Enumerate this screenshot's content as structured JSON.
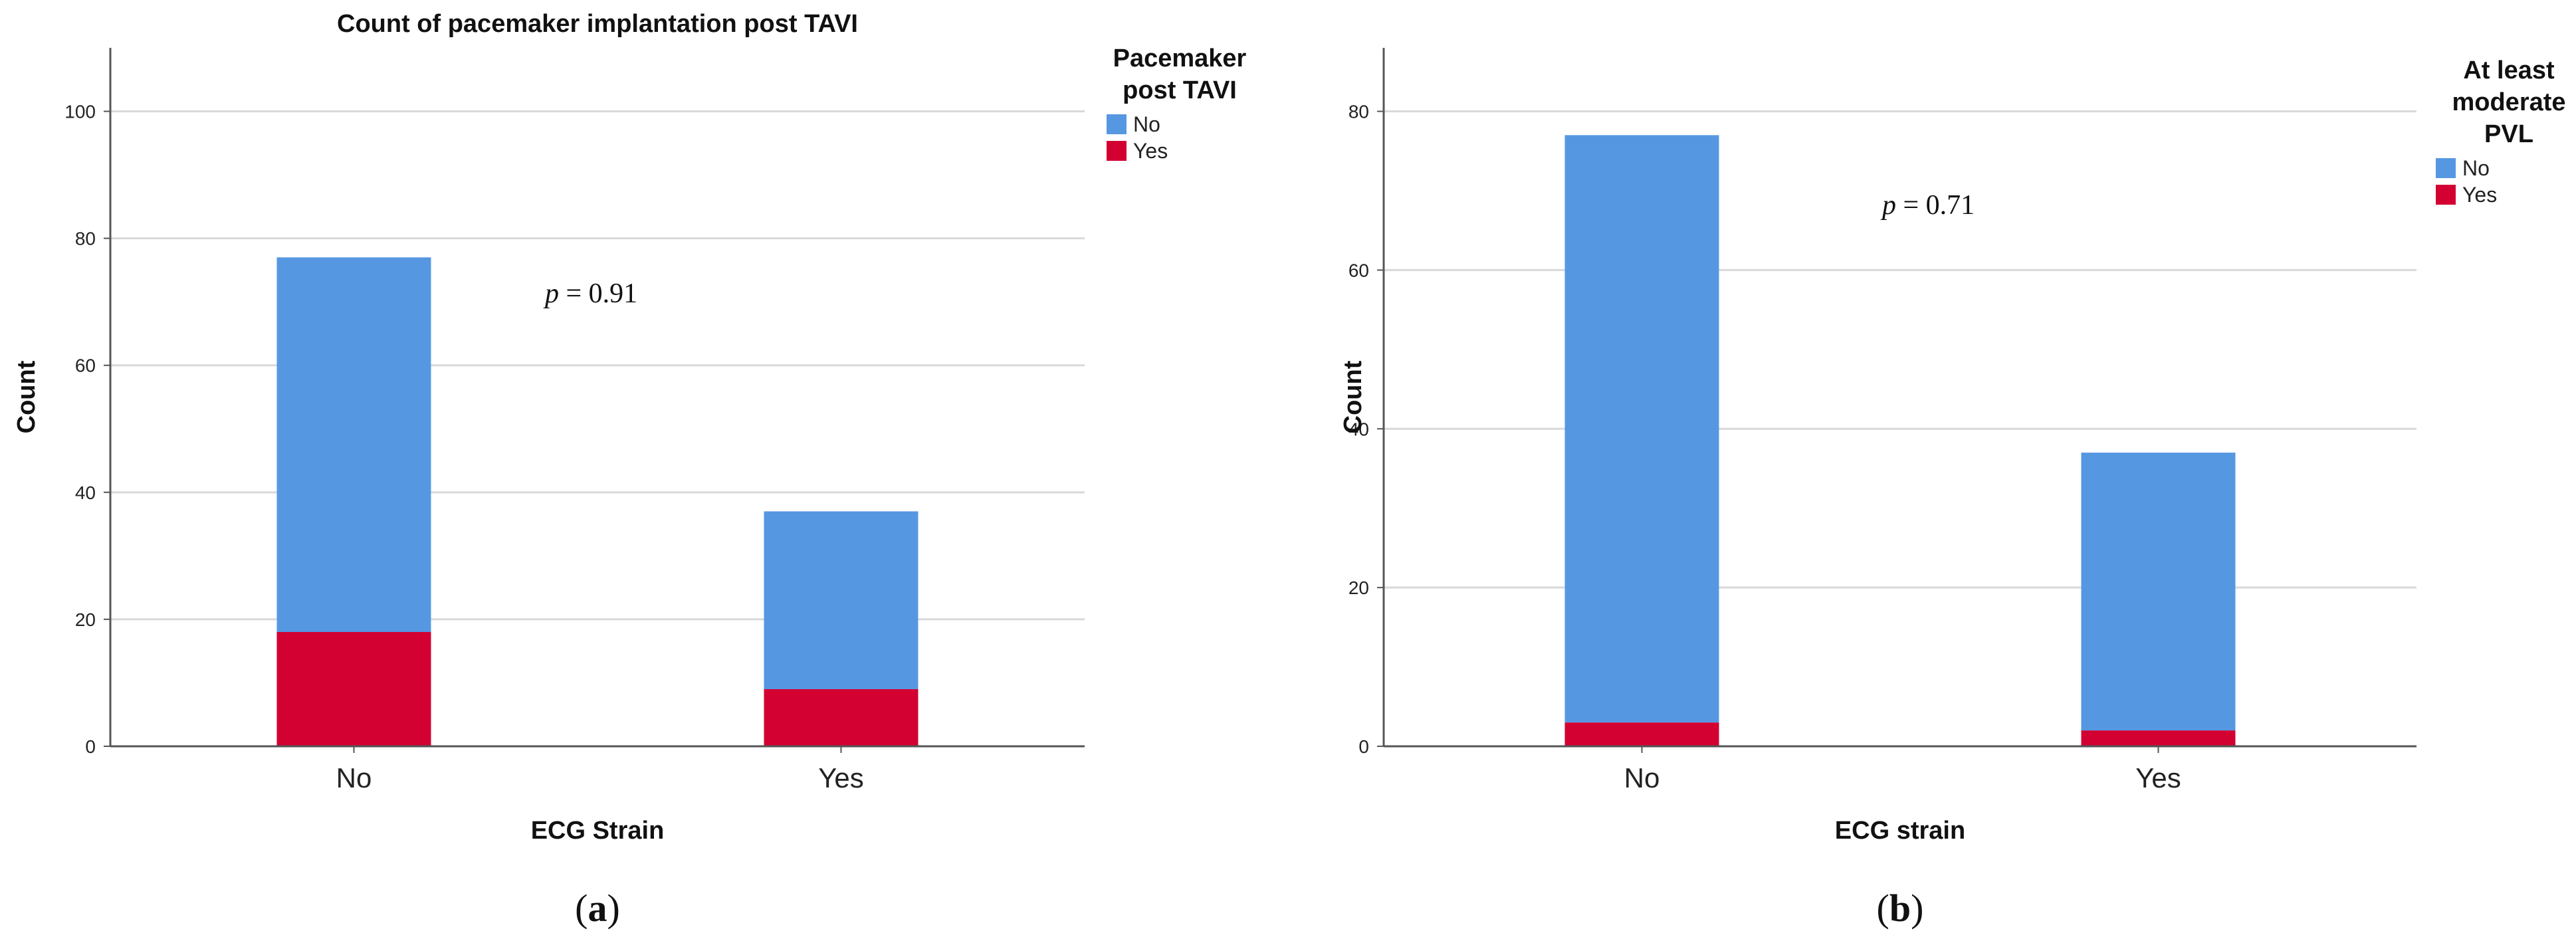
{
  "chart_data": [
    {
      "panel_label": "a",
      "type": "bar",
      "stacked": true,
      "title": "Count of pacemaker implantation post TAVI",
      "xlabel": "ECG Strain",
      "ylabel": "Count",
      "categories": [
        "No",
        "Yes"
      ],
      "ylim": [
        0,
        110
      ],
      "yticks": [
        0,
        20,
        40,
        60,
        80,
        100
      ],
      "grid": true,
      "legend_title": [
        "Pacemaker",
        "post TAVI"
      ],
      "legend_placement": "top-right",
      "series": [
        {
          "name": "No",
          "values": [
            59,
            28
          ],
          "color": "#5697e2"
        },
        {
          "name": "Yes",
          "values": [
            18,
            9
          ],
          "color": "#d20132"
        }
      ],
      "annotation": {
        "symbol": "p",
        "text": " = 0.91"
      }
    },
    {
      "panel_label": "b",
      "type": "bar",
      "stacked": true,
      "title": "",
      "xlabel": "ECG strain",
      "ylabel": "Count",
      "categories": [
        "No",
        "Yes"
      ],
      "ylim": [
        0,
        88
      ],
      "yticks": [
        0,
        20,
        40,
        60,
        80
      ],
      "grid": true,
      "legend_title": [
        "At least",
        "moderate",
        "PVL"
      ],
      "legend_placement": "top-right",
      "series": [
        {
          "name": "No",
          "values": [
            74,
            35
          ],
          "color": "#5697e2"
        },
        {
          "name": "Yes",
          "values": [
            3,
            2
          ],
          "color": "#d20132"
        }
      ],
      "annotation": {
        "symbol": "p",
        "text": " = 0.71"
      }
    }
  ]
}
